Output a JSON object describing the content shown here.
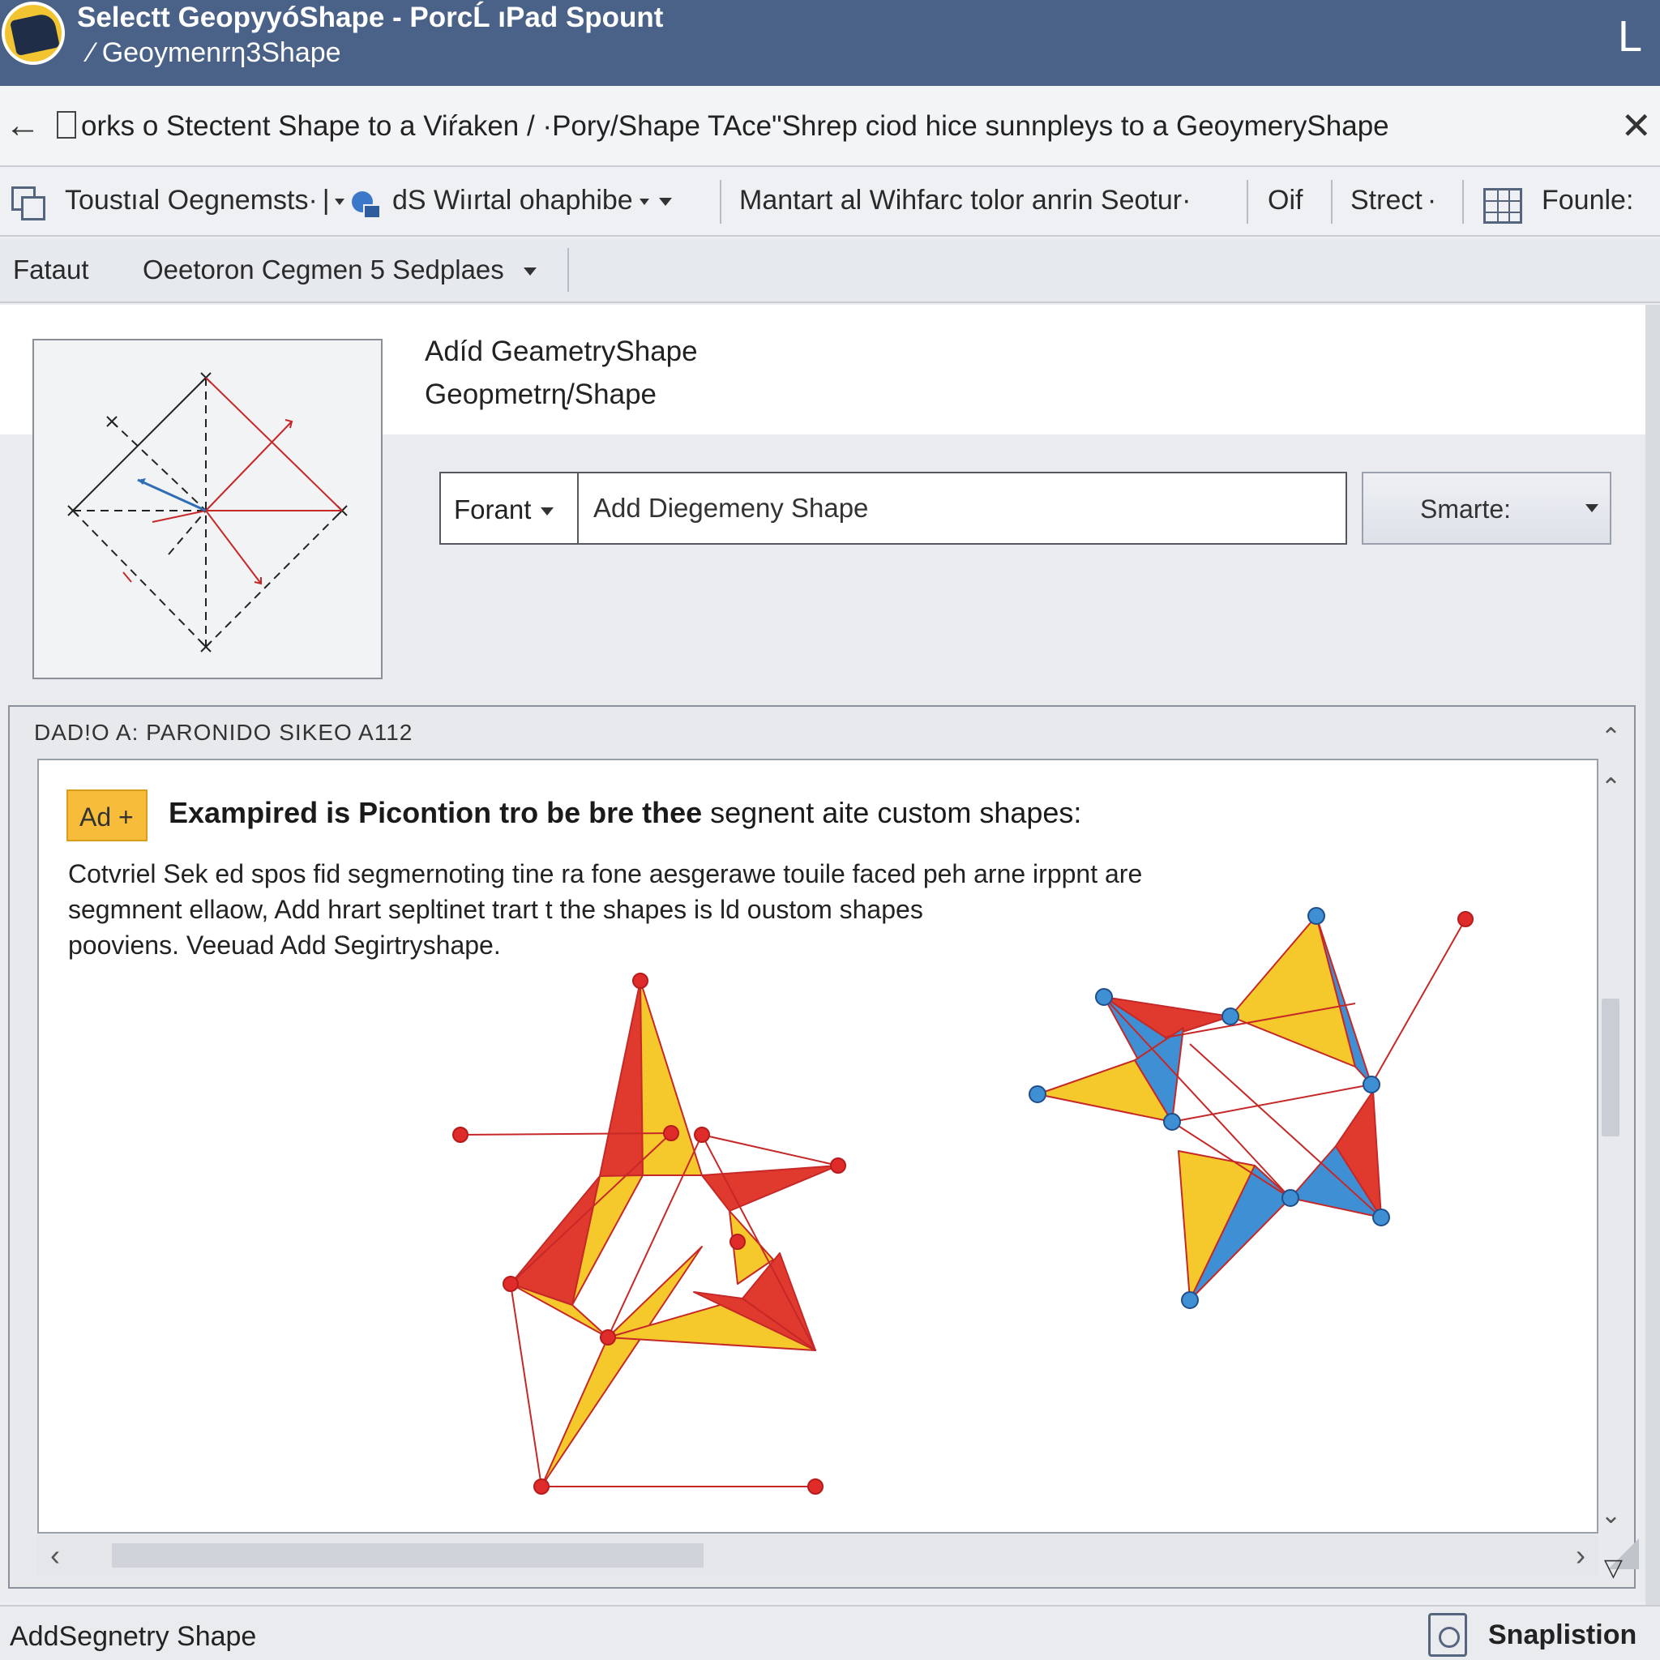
{
  "window": {
    "title_line1": "Selectt GeopyyóShape - PorcĹ ıPad Spount",
    "title_line2": "Geoymenrƞ3Shape",
    "corner_glyph": "L"
  },
  "dialog": {
    "title": "orks o Stectent Shape to a Viŕaken / ·Pory/Shape  TAce\"Shrep ciod hice sunnpleys to a GeoymeryShape"
  },
  "toolbar1": {
    "item1": "Toustıal Oegnemsts·",
    "item2": "dS Wiırtal ohaphibe",
    "item3": "Mantart al Wihfarc tolor anrin Seotur·",
    "item4": "Oif",
    "item5": "Strect",
    "item6": "Founle:"
  },
  "toolbar2": {
    "item1": "Fataut",
    "item2": "Oeetoron Cegmen 5 Sedplaes"
  },
  "panel": {
    "heading1": "Adíd GeametryShape",
    "heading2": "Geopmetrɳ/Shape",
    "select_label": "Forant",
    "input_value": "Add Diegemeny Shape",
    "smart_button": "Smarte:"
  },
  "group": {
    "label": "DAD!O A:   PARONIDO SIKEO A112",
    "badge": "Ad +",
    "heading_bold": "Exampired is Picontion tro be bre thee",
    "heading_rest": " segnent aite custom shapes:",
    "para_line1": "Cotvriel Sek ed spos fid segmernoting tine ra fone aesgerawe touile faced peh arne irppnt are",
    "para_line2": "segmnent ellaow, Add hrart sepltinet trart t the shapes is ld oustom shapes",
    "para_line3": "pooviens. Veeuad Add Segirtryshape."
  },
  "status": {
    "left": "AddSegnetry Shape",
    "right": "Snaplistion"
  },
  "icons": {
    "app": "app-logo-icon",
    "back": "back-arrow-icon",
    "close": "close-icon",
    "copy": "copy-icon",
    "shape": "shape-icon",
    "grid": "grid-icon",
    "funnel": "funnel-icon"
  },
  "colors": {
    "titlebar": "#4a6288",
    "red": "#e03a2f",
    "yellow": "#f5c82b",
    "blue": "#3f8fd4",
    "badge": "#f7bd3a"
  }
}
